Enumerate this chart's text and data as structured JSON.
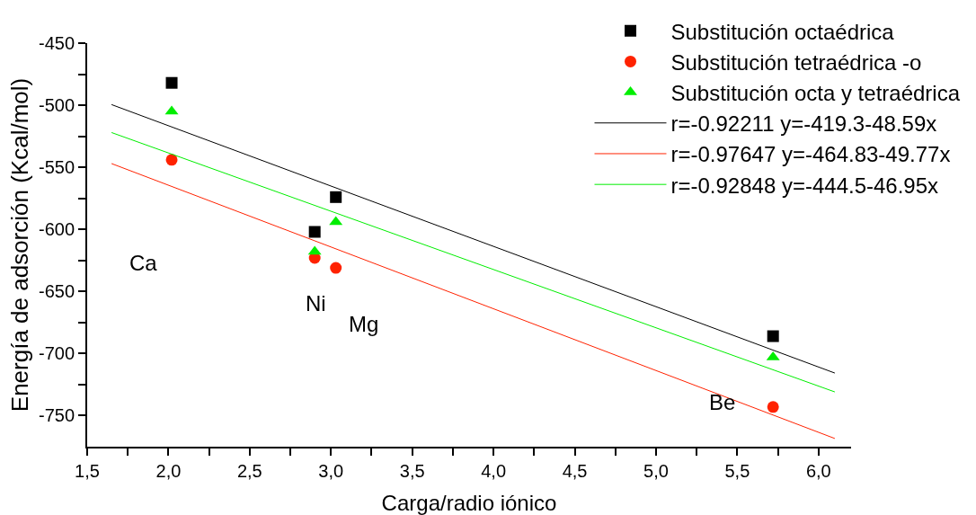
{
  "chart_data": {
    "type": "scatter",
    "xlabel": "Carga/radio iónico",
    "ylabel": "Energía de adsorción (Kcal/mol)",
    "xlim": [
      1.5,
      6.2
    ],
    "ylim": [
      -775,
      -450
    ],
    "xticks": [
      {
        "value": 1.5,
        "label": "1,5"
      },
      {
        "value": 1.75,
        "label": null
      },
      {
        "value": 2,
        "label": "2,0"
      },
      {
        "value": 2.25,
        "label": null
      },
      {
        "value": 2.5,
        "label": "2,5"
      },
      {
        "value": 2.75,
        "label": null
      },
      {
        "value": 3,
        "label": "3,0"
      },
      {
        "value": 3.25,
        "label": null
      },
      {
        "value": 3.5,
        "label": "3,5"
      },
      {
        "value": 3.75,
        "label": null
      },
      {
        "value": 4,
        "label": "4,0"
      },
      {
        "value": 4.25,
        "label": null
      },
      {
        "value": 4.5,
        "label": "4,5"
      },
      {
        "value": 4.75,
        "label": null
      },
      {
        "value": 5,
        "label": "5,0"
      },
      {
        "value": 5.25,
        "label": null
      },
      {
        "value": 5.5,
        "label": "5,5"
      },
      {
        "value": 5.75,
        "label": null
      },
      {
        "value": 6,
        "label": "6,0"
      }
    ],
    "yticks": [
      -450,
      {
        "value": -475,
        "label": null
      },
      -500,
      {
        "value": -525,
        "label": null
      },
      -550,
      {
        "value": -575,
        "label": null
      },
      -600,
      {
        "value": -625,
        "label": null
      },
      -650,
      {
        "value": -675,
        "label": null
      },
      -700,
      {
        "value": -725,
        "label": null
      },
      -750
    ],
    "grid": false,
    "legend": "top right",
    "series": [
      {
        "name": "Substitución octaédrica",
        "color": "#000000",
        "marker": "square",
        "x": [
          2.02,
          2.9,
          3.03,
          5.72
        ],
        "values": [
          -482,
          -602,
          -574,
          -686
        ]
      },
      {
        "name": "Substitución tetraédrica -o",
        "color": "#ff2200",
        "marker": "circle",
        "x": [
          2.02,
          2.9,
          3.03,
          5.72
        ],
        "values": [
          -544,
          -623,
          -631,
          -743
        ]
      },
      {
        "name": "Substitución octa y tetraédrica",
        "color": "#00ee00",
        "marker": "triangle",
        "x": [
          2.02,
          2.9,
          3.03,
          5.72
        ],
        "values": [
          -505,
          -618,
          -594,
          -703
        ]
      },
      {
        "name": "r=-0.92211 y=-419.3-48.59x",
        "type": "line",
        "color": "#000000",
        "marker": "none",
        "line_style": "solid",
        "x": [
          1.65,
          6.1
        ],
        "values": [
          -499.5,
          -715.7
        ]
      },
      {
        "name": "r=-0.97647 y=-464.83-49.77x",
        "type": "line",
        "color": "#ff2200",
        "marker": "none",
        "line_style": "solid",
        "x": [
          1.65,
          6.1
        ],
        "values": [
          -547.0,
          -768.4
        ]
      },
      {
        "name": "r=-0.92848 y=-444.5-46.95x",
        "type": "line",
        "color": "#00ee00",
        "marker": "none",
        "line_style": "solid",
        "x": [
          1.65,
          6.1
        ],
        "values": [
          -522.0,
          -730.9
        ]
      }
    ],
    "annotations": [
      "Ca",
      "Ni",
      "Mg",
      "Be"
    ]
  }
}
